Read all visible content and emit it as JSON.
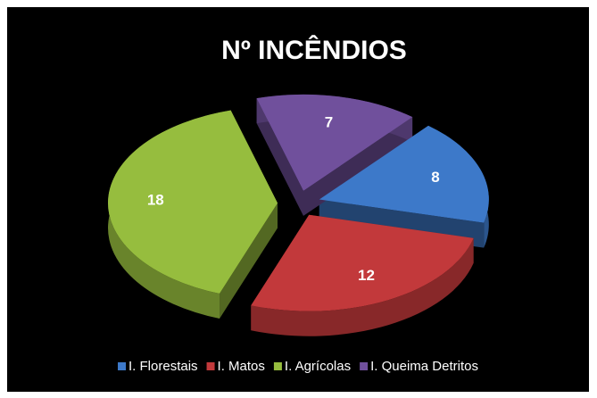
{
  "chart_data": {
    "type": "pie",
    "title": "Nº INCÊNDIOS",
    "categories": [
      "I. Florestais",
      "I. Matos",
      "I. Agrícolas",
      "I. Queima Detritos"
    ],
    "values": [
      8,
      12,
      18,
      7
    ],
    "colors": [
      "#3d79c9",
      "#c2393b",
      "#96bd3e",
      "#70509c"
    ],
    "legend": "bottom"
  }
}
